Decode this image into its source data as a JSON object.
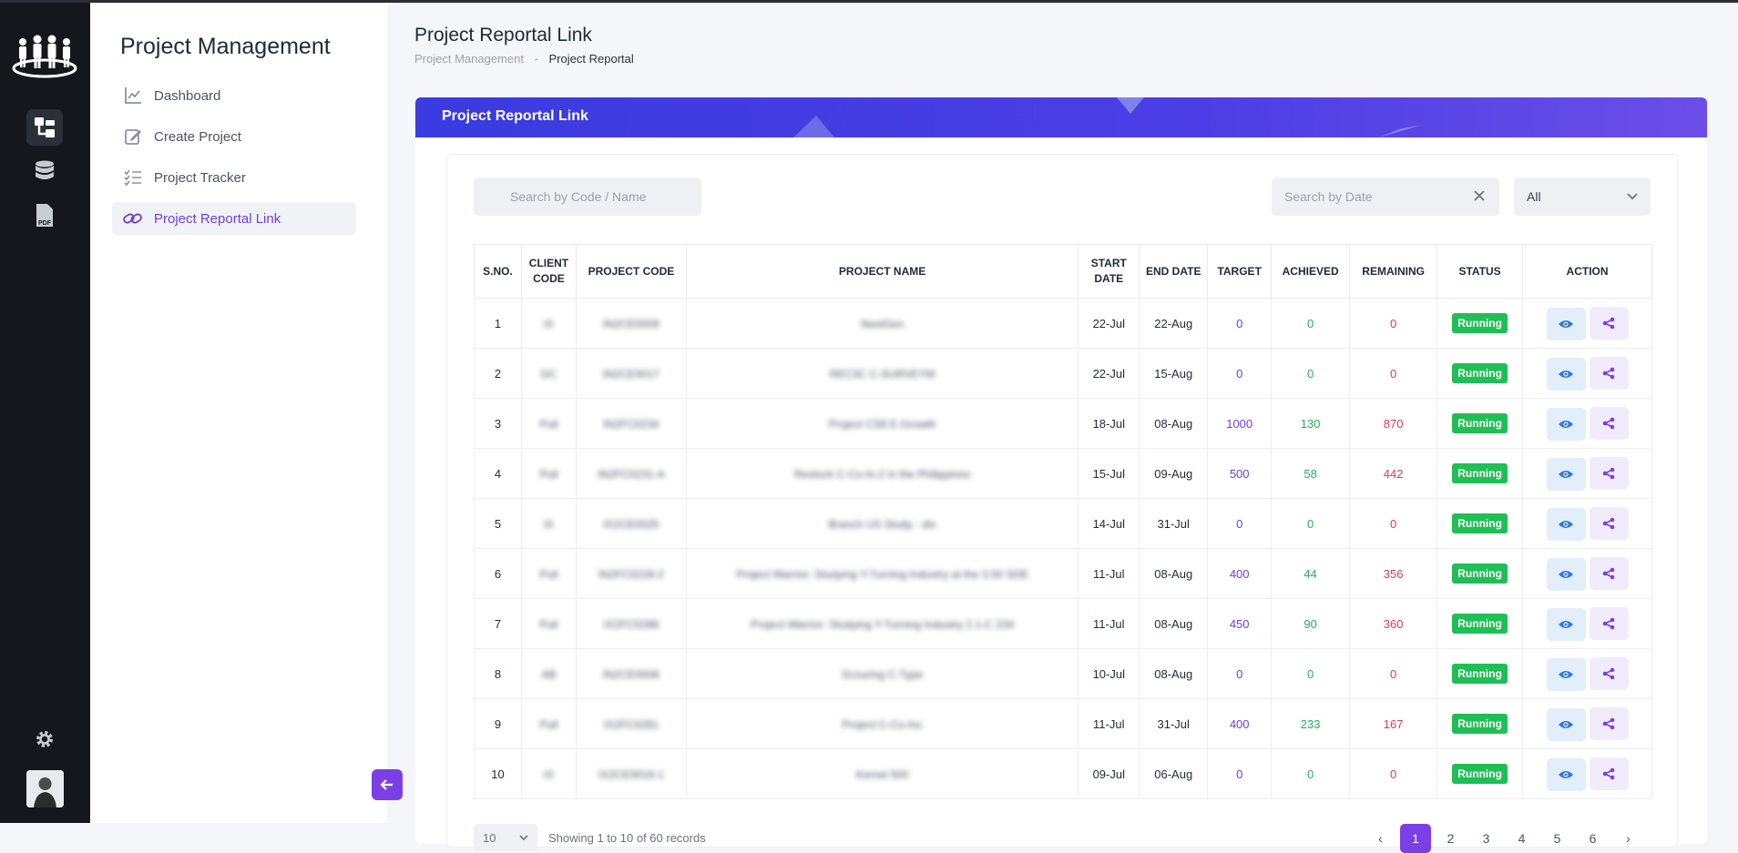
{
  "app": {
    "title": "Project Management"
  },
  "sidebar": {
    "items": [
      {
        "label": "Dashboard",
        "icon": "chart-icon",
        "active": false
      },
      {
        "label": "Create Project",
        "icon": "edit-icon",
        "active": false
      },
      {
        "label": "Project Tracker",
        "icon": "checklist-icon",
        "active": false
      },
      {
        "label": "Project Reportal Link",
        "icon": "link-icon",
        "active": true
      }
    ]
  },
  "header": {
    "title": "Project Reportal Link",
    "breadcrumb": {
      "parent": "Project Management",
      "separator": "-",
      "current": "Project Reportal"
    }
  },
  "card": {
    "title": "Project Reportal Link"
  },
  "filters": {
    "search_placeholder": "Search by Code / Name",
    "date_placeholder": "Search by Date",
    "status_value": "All"
  },
  "table": {
    "headers": [
      "S.NO.",
      "CLIENT CODE",
      "PROJECT CODE",
      "PROJECT NAME",
      "START DATE",
      "END DATE",
      "TARGET",
      "ACHIEVED",
      "REMAINING",
      "STATUS",
      "ACTION"
    ],
    "rows": [
      {
        "sno": "1",
        "client": "IX",
        "code": "IN2CE0009",
        "name": "NextGen",
        "start": "22-Jul",
        "end": "22-Aug",
        "target": "0",
        "achieved": "0",
        "remaining": "0",
        "status": "Running"
      },
      {
        "sno": "2",
        "client": "DC",
        "code": "IN2CE0017",
        "name": "REC3C C-SURVEYM",
        "start": "22-Jul",
        "end": "15-Aug",
        "target": "0",
        "achieved": "0",
        "remaining": "0",
        "status": "Running"
      },
      {
        "sno": "3",
        "client": "Pull",
        "code": "IN2FC0234",
        "name": "Project CS8 E-Growth",
        "start": "18-Jul",
        "end": "08-Aug",
        "target": "1000",
        "achieved": "130",
        "remaining": "870",
        "status": "Running"
      },
      {
        "sno": "4",
        "client": "Pull",
        "code": "IN2FC0231-A",
        "name": "Restock C-Co-In-2 in the Philippines",
        "start": "15-Jul",
        "end": "09-Aug",
        "target": "500",
        "achieved": "58",
        "remaining": "442",
        "status": "Running"
      },
      {
        "sno": "5",
        "client": "IX",
        "code": "IX2CE0025",
        "name": "Branch US Study - div",
        "start": "14-Jul",
        "end": "31-Jul",
        "target": "0",
        "achieved": "0",
        "remaining": "0",
        "status": "Running"
      },
      {
        "sno": "6",
        "client": "Pull",
        "code": "IN2FC0228-2",
        "name": "Project Warrior: Studying Y-Turning Industry at the 3.55 SDE",
        "start": "11-Jul",
        "end": "08-Aug",
        "target": "400",
        "achieved": "44",
        "remaining": "356",
        "status": "Running"
      },
      {
        "sno": "7",
        "client": "Pull",
        "code": "IX2FC0288",
        "name": "Project Warrior: Studying Y-Turning Industry 2.1-C 234",
        "start": "11-Jul",
        "end": "08-Aug",
        "target": "450",
        "achieved": "90",
        "remaining": "360",
        "status": "Running"
      },
      {
        "sno": "8",
        "client": "AB",
        "code": "IN2CE0006",
        "name": "Scouring C-Type",
        "start": "10-Jul",
        "end": "08-Aug",
        "target": "0",
        "achieved": "0",
        "remaining": "0",
        "status": "Running"
      },
      {
        "sno": "9",
        "client": "Pull",
        "code": "IX2FC0281",
        "name": "Project C-Co-Inc",
        "start": "11-Jul",
        "end": "31-Jul",
        "target": "400",
        "achieved": "233",
        "remaining": "167",
        "status": "Running"
      },
      {
        "sno": "10",
        "client": "IX",
        "code": "IX2CE0016-1",
        "name": "Kernel 500",
        "start": "09-Jul",
        "end": "06-Aug",
        "target": "0",
        "achieved": "0",
        "remaining": "0",
        "status": "Running"
      }
    ]
  },
  "footer": {
    "per_page": "10",
    "records_text": "Showing 1 to 10 of 60 records",
    "pages": [
      "1",
      "2",
      "3",
      "4",
      "5",
      "6"
    ],
    "current_page": "1",
    "prev": "‹",
    "next": "›"
  },
  "colors": {
    "accent": "#7b3fe6",
    "header_gradient": "#3a3be0",
    "running": "#1fbf55",
    "target": "#6b3fe0",
    "achieved": "#22b355",
    "remaining": "#e23a4e"
  }
}
